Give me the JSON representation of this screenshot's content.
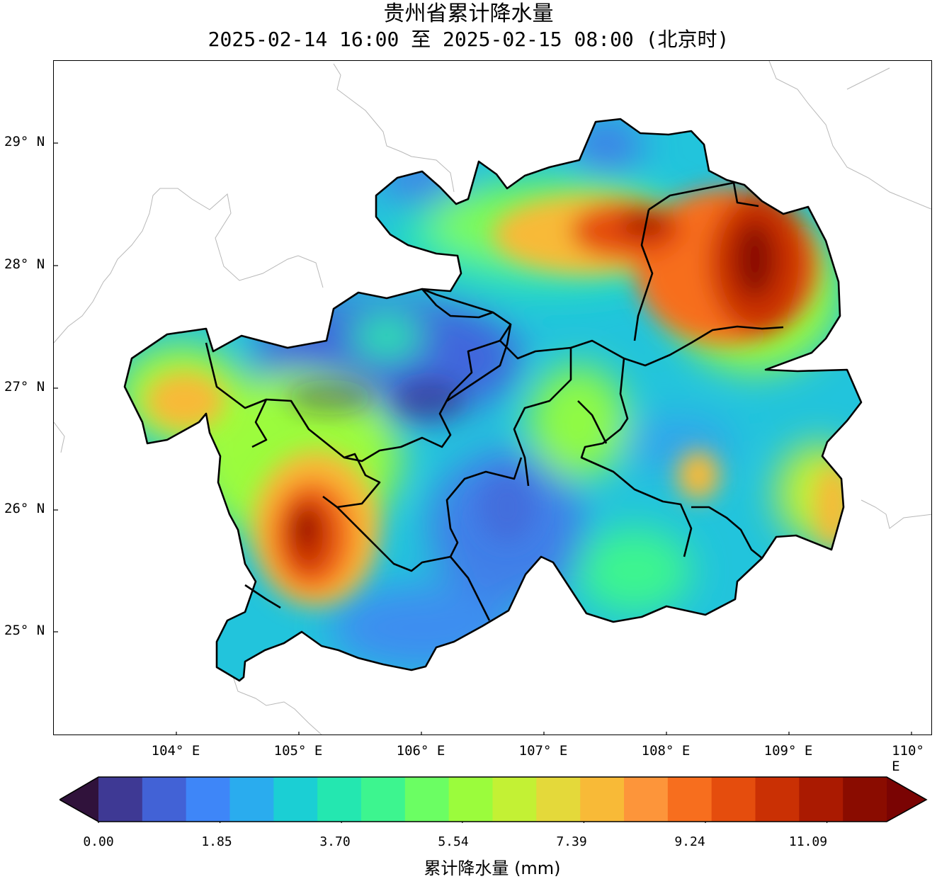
{
  "title": {
    "line1": "贵州省累计降水量",
    "line2": "2025-02-14 16:00 至 2025-02-15 08:00 (北京时)"
  },
  "map": {
    "lat_labels": [
      "29° N",
      "28° N",
      "27° N",
      "26° N",
      "25° N"
    ],
    "lon_labels": [
      "104° E",
      "105° E",
      "106° E",
      "107° E",
      "108° E",
      "109° E",
      "110° E"
    ],
    "heavy_rain_centers": [
      {
        "location": "northeast",
        "lon": 108.75,
        "lat": 28.1,
        "value": 12.0
      },
      {
        "location": "north-central",
        "lon": 107.9,
        "lat": 28.3,
        "value": 11.0
      },
      {
        "location": "southwest",
        "lon": 105.0,
        "lat": 25.9,
        "value": 12.0
      }
    ]
  },
  "colorbar": {
    "label": "累计降水量 (mm)",
    "ticks": [
      "0.00",
      "1.85",
      "3.70",
      "5.54",
      "7.39",
      "9.24",
      "11.09"
    ],
    "min": 0.0,
    "max": 12.0,
    "extend": "both",
    "colors": [
      "#30123b",
      "#3e3994",
      "#4262d6",
      "#3e86f8",
      "#2aacee",
      "#1bcfd4",
      "#24e7b0",
      "#3df58f",
      "#6bfe63",
      "#9bfc3c",
      "#c3f134",
      "#e4d93a",
      "#f8ba37",
      "#fd953a",
      "#f76e1e",
      "#e54d0d",
      "#ca3004",
      "#aa1a01",
      "#8a0c00",
      "#7a0403"
    ]
  }
}
